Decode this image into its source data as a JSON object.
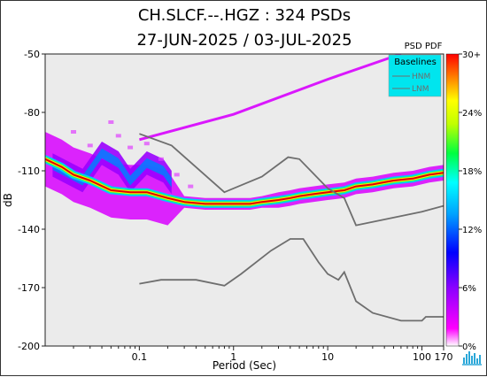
{
  "header": {
    "title_line1": "CH.SLCF.--.HGZ : 324 PSDs",
    "title_line2": "27-JUN-2025 / 03-JUL-2025"
  },
  "colors": {
    "plot_bg": "#ebebeb",
    "model_line": "#6e6e6e",
    "legend_bg": "#00e5ee",
    "mode_line": "#cc0000"
  },
  "chart_data": {
    "type": "heatmap",
    "title": "CH.SLCF.--.HGZ : 324 PSDs",
    "subtitle": "27-JUN-2025 / 03-JUL-2025",
    "xlabel": "Period (Sec)",
    "ylabel": "dB",
    "x_scale": "log",
    "xlim": [
      0.01,
      170
    ],
    "ylim": [
      -200,
      -50
    ],
    "x_ticks": [
      {
        "value": 0.1,
        "label": "0.1"
      },
      {
        "value": 1,
        "label": "1"
      },
      {
        "value": 10,
        "label": "10"
      },
      {
        "value": 100,
        "label": "100"
      },
      {
        "value": 170,
        "label": "170"
      }
    ],
    "y_ticks": [
      -50,
      -80,
      -110,
      -140,
      -170,
      -200
    ],
    "legend": {
      "title": "Baselines",
      "entries": [
        "HNM",
        "LNM"
      ],
      "placement": "top-right"
    },
    "colorbar": {
      "title": "PSD PDF",
      "labels": [
        "30+",
        "24%",
        "18%",
        "12%",
        "6%",
        "0%"
      ]
    },
    "baselines": {
      "HNM": [
        [
          0.1,
          -91
        ],
        [
          0.22,
          -97
        ],
        [
          0.8,
          -121
        ],
        [
          2,
          -113
        ],
        [
          3.8,
          -103
        ],
        [
          5,
          -104
        ],
        [
          10,
          -119
        ],
        [
          15,
          -124
        ],
        [
          20,
          -138
        ],
        [
          100,
          -131
        ],
        [
          170,
          -128
        ]
      ],
      "LNM": [
        [
          0.1,
          -168
        ],
        [
          0.17,
          -166
        ],
        [
          0.4,
          -166
        ],
        [
          0.8,
          -169
        ],
        [
          1.2,
          -163
        ],
        [
          2.5,
          -151
        ],
        [
          4,
          -145
        ],
        [
          5.5,
          -145
        ],
        [
          8,
          -157
        ],
        [
          10,
          -163
        ],
        [
          13,
          -166
        ],
        [
          15,
          -162
        ],
        [
          20,
          -177
        ],
        [
          30,
          -183
        ],
        [
          60,
          -187
        ],
        [
          100,
          -187
        ],
        [
          110,
          -185
        ],
        [
          170,
          -185
        ]
      ]
    },
    "mode_curve": [
      [
        0.01,
        -104
      ],
      [
        0.015,
        -108
      ],
      [
        0.02,
        -112
      ],
      [
        0.03,
        -115
      ],
      [
        0.05,
        -120
      ],
      [
        0.08,
        -121
      ],
      [
        0.12,
        -121
      ],
      [
        0.2,
        -124
      ],
      [
        0.3,
        -126
      ],
      [
        0.5,
        -127
      ],
      [
        0.7,
        -127
      ],
      [
        1,
        -127
      ],
      [
        1.5,
        -127
      ],
      [
        2,
        -126
      ],
      [
        3,
        -125
      ],
      [
        4,
        -124
      ],
      [
        5,
        -123
      ],
      [
        7,
        -122
      ],
      [
        10,
        -121
      ],
      [
        15,
        -120
      ],
      [
        20,
        -118
      ],
      [
        30,
        -117
      ],
      [
        50,
        -115
      ],
      [
        80,
        -114
      ],
      [
        120,
        -112
      ],
      [
        170,
        -111
      ]
    ],
    "microseism_bands": [
      [
        0.012,
        -107
      ],
      [
        0.025,
        -115
      ],
      [
        0.04,
        -101
      ],
      [
        0.06,
        -106
      ],
      [
        0.08,
        -115
      ],
      [
        0.12,
        -106
      ],
      [
        0.18,
        -110
      ],
      [
        0.22,
        -116
      ]
    ],
    "noise_ray": [
      [
        0.1,
        -94
      ],
      [
        1,
        -81
      ],
      [
        10,
        -63
      ],
      [
        60,
        -50
      ]
    ]
  }
}
